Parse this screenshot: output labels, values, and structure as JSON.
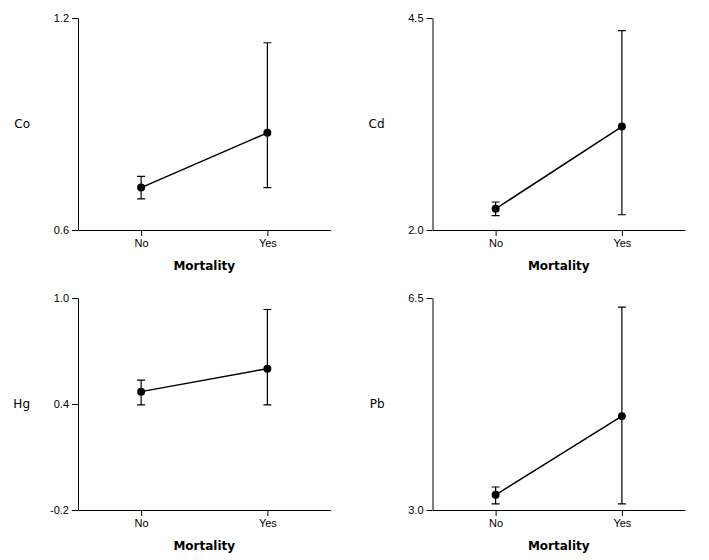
{
  "chart_data": [
    {
      "type": "line",
      "ylabel": "Co",
      "xlabel": "Mortality",
      "categories": [
        "No",
        "Yes"
      ],
      "values": [
        0.72,
        0.875
      ],
      "lower": [
        0.688,
        0.72
      ],
      "upper": [
        0.752,
        1.13
      ],
      "ylim": [
        0.6,
        1.2
      ],
      "yticks": [
        0.6,
        1.2
      ],
      "color": "black",
      "marker": "circle"
    },
    {
      "type": "line",
      "ylabel": "Cd",
      "xlabel": "Mortality",
      "categories": [
        "No",
        "Yes"
      ],
      "values": [
        2.25,
        3.22
      ],
      "lower": [
        2.17,
        2.18
      ],
      "upper": [
        2.33,
        4.35
      ],
      "ylim": [
        2.0,
        4.5
      ],
      "yticks": [
        {
          "value": 2.0,
          "label": "2.0"
        },
        4.5
      ],
      "color": "black",
      "marker": "circle"
    },
    {
      "type": "line",
      "ylabel": "Hg",
      "xlabel": "Mortality",
      "categories": [
        "No",
        "Yes"
      ],
      "values": [
        0.47,
        0.6
      ],
      "lower": [
        0.395,
        0.395
      ],
      "upper": [
        0.535,
        0.935
      ],
      "ylim": [
        -0.2,
        1.0
      ],
      "yticks": [
        -0.2,
        0.4,
        {
          "value": 1.0,
          "label": "1.0"
        }
      ],
      "color": "black",
      "marker": "circle"
    },
    {
      "type": "line",
      "ylabel": "Pb",
      "xlabel": "Mortality",
      "categories": [
        "No",
        "Yes"
      ],
      "values": [
        3.25,
        4.55
      ],
      "lower": [
        3.1,
        3.1
      ],
      "upper": [
        3.38,
        6.35
      ],
      "ylim": [
        3.0,
        6.5
      ],
      "yticks": [
        {
          "value": 3.0,
          "label": "3.0"
        },
        6.5
      ],
      "color": "black",
      "marker": "circle"
    }
  ]
}
